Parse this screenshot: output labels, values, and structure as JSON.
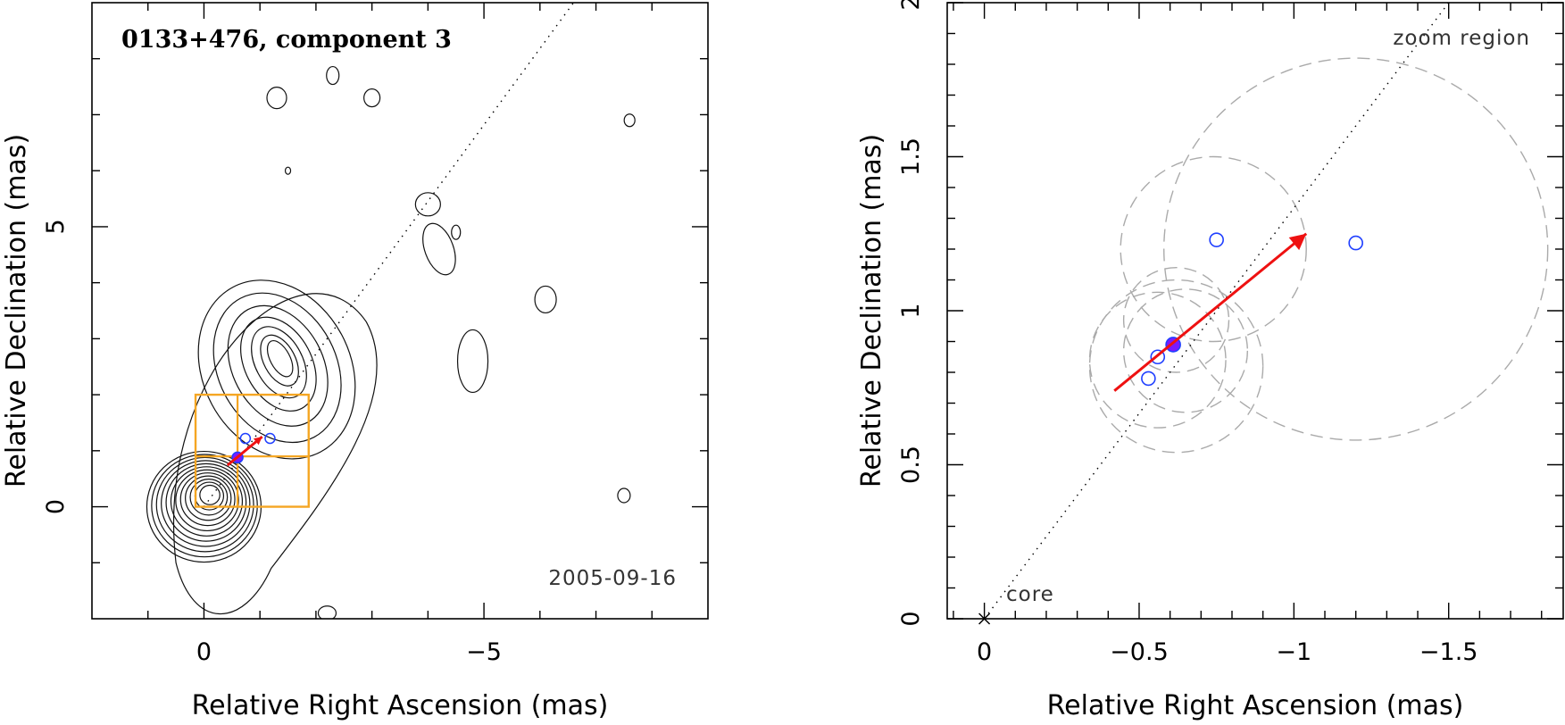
{
  "chart_data": [
    {
      "type": "scatter",
      "panel": "left",
      "title": "0133+476, component 3",
      "date_label": "2005-09-16",
      "xlabel": "Relative Right Ascension (mas)",
      "ylabel": "Relative Declination (mas)",
      "xlim": [
        2.0,
        -9.0
      ],
      "ylim": [
        -2.0,
        9.0
      ],
      "xticks": [
        0,
        -5
      ],
      "xtick_labels": [
        "0",
        "−5"
      ],
      "yticks": [
        0,
        5
      ],
      "ytick_labels": [
        "0",
        "5"
      ],
      "features": [
        "contour map",
        "zoom region boxes",
        "motion vector",
        "jet axis"
      ],
      "jet_axis": {
        "x0": 0,
        "y0": 0,
        "x1": -6.6,
        "y1": 9.0
      },
      "component_positions": [
        {
          "x": -0.6,
          "y": 0.88,
          "filled": true
        },
        {
          "x": -0.74,
          "y": 1.22,
          "filled": false
        },
        {
          "x": -1.18,
          "y": 1.22,
          "filled": false
        }
      ],
      "motion_vector": {
        "x0": -0.42,
        "y0": 0.74,
        "x1": -1.04,
        "y1": 1.25
      },
      "zoom_boxes": [
        {
          "x0": 0.15,
          "y0": 0,
          "x1": -1.87,
          "y1": 2.0
        },
        {
          "x0": 0.15,
          "y0": 0.9,
          "x1": -1.87,
          "y1": 0.9
        },
        {
          "x0": -0.6,
          "y0": 0,
          "x1": -0.6,
          "y1": 2.0
        }
      ]
    },
    {
      "type": "scatter",
      "panel": "right",
      "xlabel": "Relative Right Ascension (mas)",
      "ylabel": "Relative Declination (mas)",
      "xlim": [
        0.12,
        -1.87
      ],
      "ylim": [
        0,
        2.0
      ],
      "xticks": [
        0,
        -0.5,
        -1,
        -1.5
      ],
      "xtick_labels": [
        "0",
        "−0.5",
        "−1",
        "−1.5"
      ],
      "yticks": [
        0,
        0.5,
        1,
        1.5,
        2
      ],
      "ytick_labels": [
        "0",
        "0.5",
        "1",
        "1.5",
        "2"
      ],
      "annotations": {
        "zoom": "zoom region",
        "core": "core"
      },
      "core": {
        "x": 0,
        "y": 0
      },
      "jet_axis": {
        "x0": 0,
        "y0": 0,
        "x1": -1.5,
        "y1": 2.0
      },
      "component_positions": [
        {
          "x": -0.53,
          "y": 0.78,
          "filled": false
        },
        {
          "x": -0.56,
          "y": 0.85,
          "filled": false
        },
        {
          "x": -0.61,
          "y": 0.89,
          "filled": true
        },
        {
          "x": -0.75,
          "y": 1.23,
          "filled": false
        },
        {
          "x": -1.2,
          "y": 1.22,
          "filled": false
        }
      ],
      "motion_vector": {
        "x0": -0.42,
        "y0": 0.74,
        "x1": -1.04,
        "y1": 1.25
      },
      "uncertainty_circles": [
        {
          "x": -0.62,
          "y": 0.82,
          "r": 0.28
        },
        {
          "x": -0.56,
          "y": 0.84,
          "r": 0.22
        },
        {
          "x": -0.65,
          "y": 0.87,
          "r": 0.2
        },
        {
          "x": -0.74,
          "y": 1.2,
          "r": 0.3
        },
        {
          "x": -0.62,
          "y": 0.97,
          "r": 0.17
        },
        {
          "x": -1.2,
          "y": 1.2,
          "r": 0.62
        }
      ]
    }
  ],
  "colors": {
    "axis": "#000000",
    "contour": "#111111",
    "zoom_box": "#f5a623",
    "vector": "#ee1111",
    "component_open": "#1f3fff",
    "component_filled": "#7a1aff",
    "circles": "#aaaaaa"
  }
}
